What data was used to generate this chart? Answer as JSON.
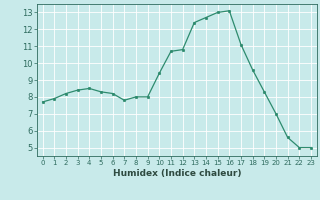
{
  "x": [
    0,
    1,
    2,
    3,
    4,
    5,
    6,
    7,
    8,
    9,
    10,
    11,
    12,
    13,
    14,
    15,
    16,
    17,
    18,
    19,
    20,
    21,
    22,
    23
  ],
  "y": [
    7.7,
    7.9,
    8.2,
    8.4,
    8.5,
    8.3,
    8.2,
    7.8,
    8.0,
    8.0,
    9.4,
    10.7,
    10.8,
    12.4,
    12.7,
    13.0,
    13.1,
    11.1,
    9.6,
    8.3,
    7.0,
    5.6,
    5.0,
    5.0
  ],
  "line_color": "#2e8b6e",
  "marker_color": "#2e8b6e",
  "bg_color": "#c8eaea",
  "grid_color": "#b0d8d8",
  "xlabel": "Humidex (Indice chaleur)",
  "xlim": [
    -0.5,
    23.5
  ],
  "ylim": [
    4.5,
    13.5
  ],
  "yticks": [
    5,
    6,
    7,
    8,
    9,
    10,
    11,
    12,
    13
  ],
  "xticks": [
    0,
    1,
    2,
    3,
    4,
    5,
    6,
    7,
    8,
    9,
    10,
    11,
    12,
    13,
    14,
    15,
    16,
    17,
    18,
    19,
    20,
    21,
    22,
    23
  ],
  "tick_color": "#2e6b5e",
  "label_color": "#2e4a40"
}
